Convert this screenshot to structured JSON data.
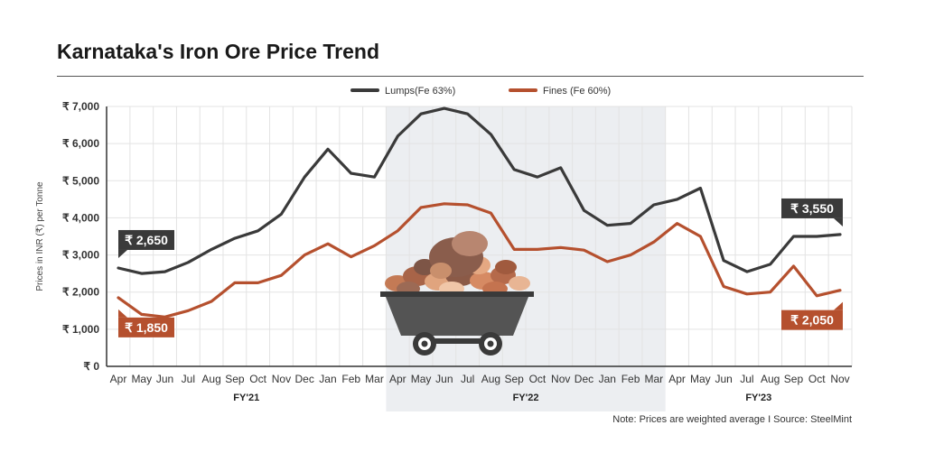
{
  "title": "Karnataka's Iron Ore Price Trend",
  "note": "Note: Prices are weighted average  I Source: SteelMint",
  "colors": {
    "lumps": "#3a3a3a",
    "fines": "#b5502e",
    "shade": "#eceef1"
  },
  "chart_data": {
    "type": "line",
    "title": "Karnataka's Iron Ore Price Trend",
    "ylabel": "Prices in INR (₹) per Tonne",
    "xlabel": "",
    "ylim": [
      0,
      7000
    ],
    "yticks": [
      0,
      1000,
      2000,
      3000,
      4000,
      5000,
      6000,
      7000
    ],
    "ytick_labels": [
      "₹ 0",
      "₹ 1,000",
      "₹ 2,000",
      "₹ 3,000",
      "₹ 4,000",
      "₹ 5,000",
      "₹ 6,000",
      "₹ 7,000"
    ],
    "grid": true,
    "legend": "top-center",
    "categories": [
      "Apr",
      "May",
      "Jun",
      "Jul",
      "Aug",
      "Sep",
      "Oct",
      "Nov",
      "Dec",
      "Jan",
      "Feb",
      "Mar",
      "Apr",
      "May",
      "Jun",
      "Jul",
      "Aug",
      "Sep",
      "Oct",
      "Nov",
      "Dec",
      "Jan",
      "Feb",
      "Mar",
      "Apr",
      "May",
      "Jun",
      "Jul",
      "Aug",
      "Sep",
      "Oct",
      "Nov"
    ],
    "groups": [
      {
        "label": "FY'21",
        "start": 0,
        "end": 11,
        "highlighted": false
      },
      {
        "label": "FY'22",
        "start": 12,
        "end": 23,
        "highlighted": true
      },
      {
        "label": "FY'23",
        "start": 24,
        "end": 31,
        "highlighted": false
      }
    ],
    "series": [
      {
        "name": "Lumps(Fe 63%)",
        "color": "#3a3a3a",
        "values": [
          2650,
          2500,
          2550,
          2800,
          3150,
          3450,
          3650,
          4100,
          5100,
          5850,
          5200,
          5100,
          6200,
          6800,
          6950,
          6800,
          6250,
          5300,
          5100,
          5350,
          4200,
          3800,
          3850,
          4350,
          4500,
          4800,
          2850,
          2550,
          2750,
          3500,
          3500,
          3550
        ]
      },
      {
        "name": "Fines (Fe 60%)",
        "color": "#b5502e",
        "values": [
          1850,
          1400,
          1330,
          1500,
          1750,
          2250,
          2250,
          2450,
          3000,
          3300,
          2950,
          3250,
          3650,
          4280,
          4380,
          4350,
          4130,
          3150,
          3150,
          3200,
          3130,
          2820,
          3000,
          3350,
          3850,
          3500,
          2150,
          1950,
          2000,
          2700,
          1900,
          2050
        ]
      }
    ],
    "annotations": [
      {
        "series": "Lumps(Fe 63%)",
        "index": 0,
        "text": "₹ 2,650"
      },
      {
        "series": "Fines (Fe 60%)",
        "index": 0,
        "text": "₹ 1,850"
      },
      {
        "series": "Lumps(Fe 63%)",
        "index": 31,
        "text": "₹ 3,550"
      },
      {
        "series": "Fines (Fe 60%)",
        "index": 31,
        "text": "₹ 2,050"
      }
    ]
  }
}
